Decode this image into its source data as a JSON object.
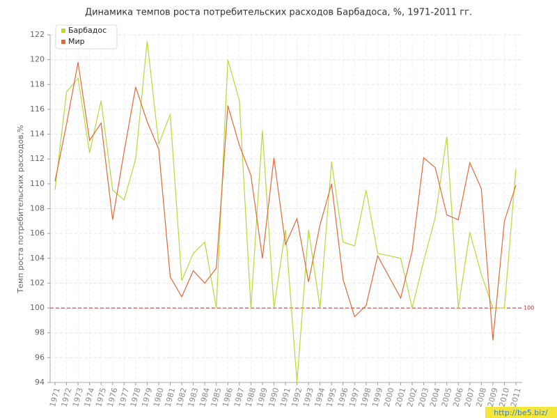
{
  "chart_data": {
    "type": "line",
    "title": "Динамика темпов роста потребительских расходов Барбадоса, %, 1971-2011 гг.",
    "y_label": "Темп роста потребительских расходов,%",
    "categories": [
      "1971",
      "1972",
      "1973",
      "1974",
      "1975",
      "1976",
      "1977",
      "1978",
      "1979",
      "1980",
      "1981",
      "1982",
      "1983",
      "1984",
      "1985",
      "1986",
      "1987",
      "1988",
      "1989",
      "1990",
      "1991",
      "1992",
      "1993",
      "1994",
      "1995",
      "1996",
      "1997",
      "1998",
      "1999",
      "2000",
      "2001",
      "2002",
      "2003",
      "2004",
      "2005",
      "2006",
      "2007",
      "2008",
      "2009",
      "2010",
      "2011"
    ],
    "series": [
      {
        "name": "Барбадос",
        "color": "#b5d93a",
        "values": [
          109.5,
          117.4,
          118.5,
          112.5,
          116.7,
          109.5,
          108.7,
          112,
          121.5,
          113.2,
          115.6,
          102.2,
          104.4,
          105.3,
          100,
          120,
          116.7,
          100,
          114.3,
          100,
          106.3,
          94,
          106.3,
          100,
          111.8,
          105.3,
          105,
          109.5,
          104.4,
          104.2,
          104,
          100,
          103.8,
          107.3,
          113.8,
          100,
          106.1,
          102.7,
          100,
          100,
          111.2
        ]
      },
      {
        "name": "Мир",
        "color": "#e0693a",
        "values": [
          110.2,
          114.8,
          119.8,
          113.5,
          114.9,
          107.1,
          112.6,
          117.8,
          115,
          112.8,
          102.5,
          100.9,
          103,
          102,
          103.2,
          116.3,
          113.1,
          110.7,
          104,
          112.1,
          105.1,
          107.2,
          102.1,
          106.7,
          110,
          102.3,
          99.3,
          100.2,
          104.2,
          102.5,
          100.8,
          104.6,
          112.1,
          111.3,
          107.5,
          107.1,
          111.7,
          109.6,
          97.4,
          107,
          109.9
        ]
      }
    ],
    "ylim": [
      94,
      122
    ],
    "yticks": [
      94,
      96,
      98,
      100,
      102,
      104,
      106,
      108,
      110,
      112,
      114,
      116,
      118,
      120,
      122
    ],
    "grid": true,
    "reference_line": 100,
    "legend": "top-left"
  },
  "watermark": "http://be5.biz/"
}
